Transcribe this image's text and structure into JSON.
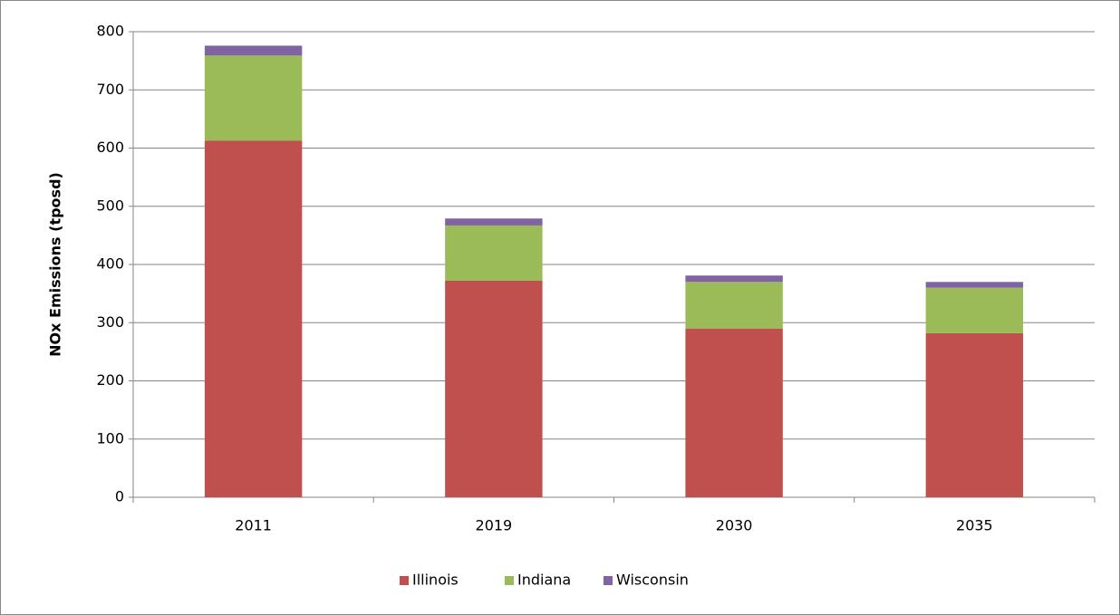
{
  "chart_data": {
    "type": "stacked_bar",
    "y_label": "NOx Emissions (tposd)",
    "categories": [
      "2011",
      "2019",
      "2030",
      "2035"
    ],
    "series": [
      {
        "name": "Illinois",
        "color": "#c0504d",
        "values": [
          613,
          372,
          290,
          282
        ]
      },
      {
        "name": "Indiana",
        "color": "#9bbb59",
        "values": [
          146,
          95,
          80,
          78
        ]
      },
      {
        "name": "Wisconsin",
        "color": "#8064a2",
        "values": [
          17,
          12,
          11,
          10
        ]
      }
    ],
    "ylim": [
      0,
      800
    ],
    "yticks": [
      0,
      100,
      200,
      300,
      400,
      500,
      600,
      700,
      800
    ],
    "grid": true,
    "legend": "bottom"
  }
}
